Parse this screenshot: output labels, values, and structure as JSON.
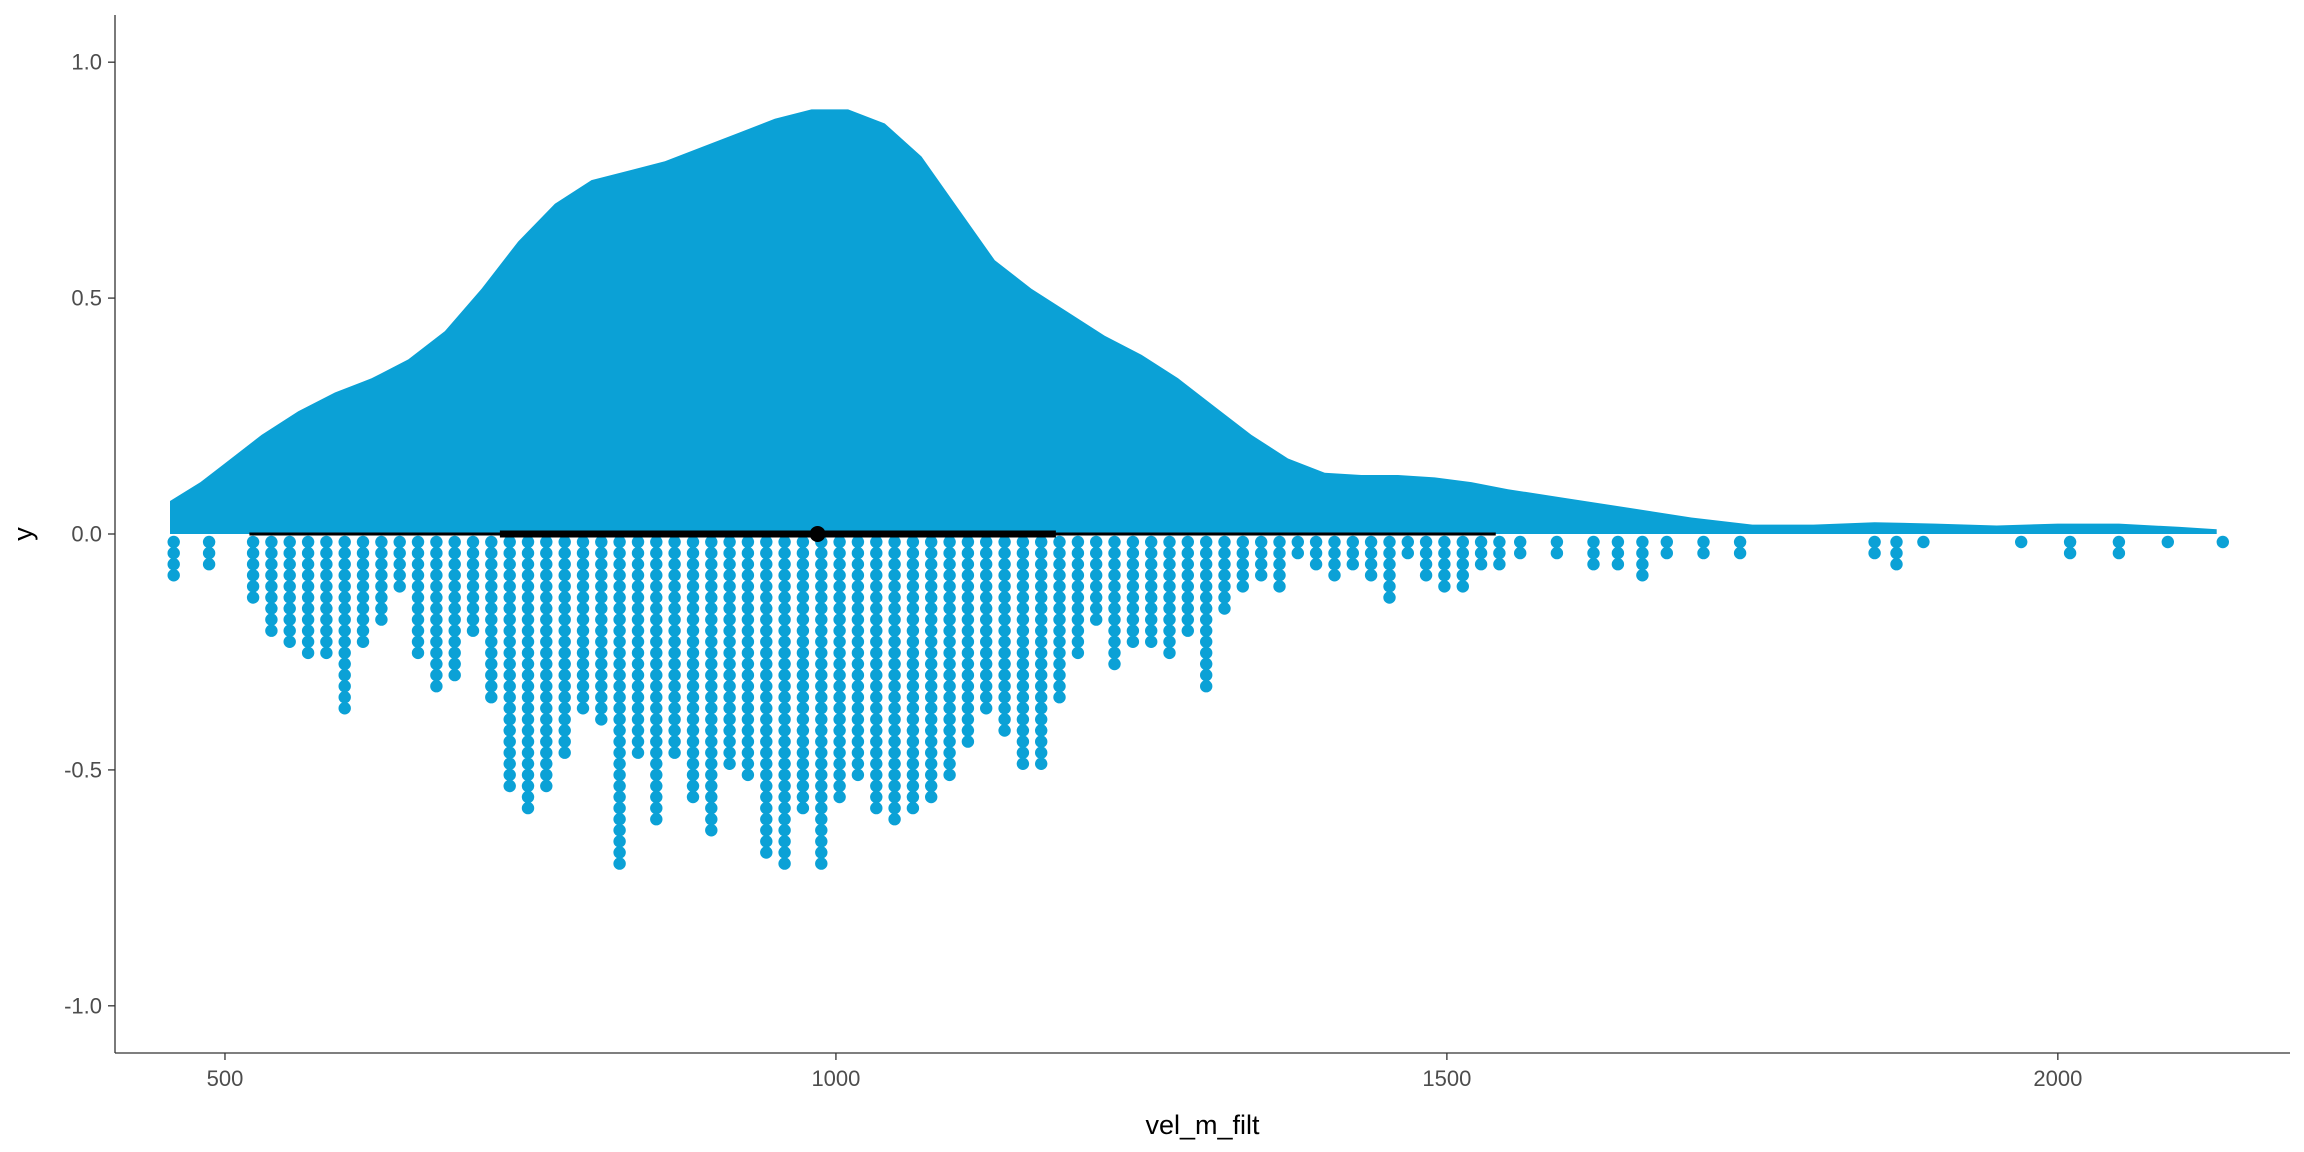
{
  "chart_data": {
    "type": "raincloud",
    "xlabel": "vel_m_filt",
    "ylabel": "y",
    "xlim": [
      410,
      2190
    ],
    "ylim": [
      -1.1,
      1.1
    ],
    "x_ticks": [
      500,
      1000,
      1500,
      2000
    ],
    "x_tick_labels": [
      "500",
      "1000",
      "1500",
      "2000"
    ],
    "y_ticks": [
      1.0,
      0.5,
      0.0,
      -0.5,
      -1.0
    ],
    "y_tick_labels": [
      "1.0",
      "0.5",
      "0.0",
      "-0.5",
      "-1.0"
    ],
    "grid": false,
    "legend": "none",
    "color": "#0ba1d6",
    "density": {
      "x": [
        455,
        480,
        500,
        530,
        560,
        590,
        620,
        650,
        680,
        710,
        740,
        770,
        800,
        830,
        860,
        890,
        920,
        950,
        980,
        1010,
        1040,
        1070,
        1100,
        1130,
        1160,
        1190,
        1220,
        1250,
        1280,
        1310,
        1340,
        1370,
        1400,
        1430,
        1460,
        1490,
        1520,
        1550,
        1600,
        1650,
        1700,
        1750,
        1800,
        1850,
        1900,
        1950,
        2000,
        2050,
        2100,
        2130
      ],
      "y": [
        0.07,
        0.11,
        0.15,
        0.21,
        0.26,
        0.3,
        0.33,
        0.37,
        0.43,
        0.52,
        0.62,
        0.7,
        0.75,
        0.77,
        0.79,
        0.82,
        0.85,
        0.88,
        0.9,
        0.9,
        0.87,
        0.8,
        0.69,
        0.58,
        0.52,
        0.47,
        0.42,
        0.38,
        0.33,
        0.27,
        0.21,
        0.16,
        0.13,
        0.125,
        0.125,
        0.12,
        0.11,
        0.095,
        0.075,
        0.055,
        0.035,
        0.02,
        0.02,
        0.025,
        0.022,
        0.018,
        0.022,
        0.022,
        0.015,
        0.01
      ]
    },
    "interval": {
      "thin": [
        520,
        1540
      ],
      "thick": [
        725,
        1180
      ],
      "point": 985
    },
    "dots": {
      "x": [
        458,
        487,
        523,
        538,
        553,
        568,
        583,
        598,
        613,
        628,
        643,
        658,
        673,
        688,
        703,
        718,
        733,
        748,
        763,
        778,
        793,
        808,
        823,
        838,
        853,
        868,
        883,
        898,
        913,
        928,
        943,
        958,
        973,
        988,
        1003,
        1018,
        1033,
        1048,
        1063,
        1078,
        1093,
        1108,
        1123,
        1138,
        1153,
        1168,
        1183,
        1198,
        1213,
        1228,
        1243,
        1258,
        1273,
        1288,
        1303,
        1318,
        1333,
        1348,
        1363,
        1378,
        1393,
        1408,
        1423,
        1438,
        1453,
        1468,
        1483,
        1498,
        1513,
        1528,
        1543,
        1560,
        1590,
        1620,
        1640,
        1660,
        1680,
        1710,
        1740,
        1850,
        1868,
        1890,
        1970,
        2010,
        2050,
        2090,
        2135
      ],
      "count": [
        4,
        3,
        6,
        9,
        10,
        11,
        11,
        16,
        10,
        8,
        5,
        11,
        14,
        13,
        9,
        15,
        23,
        25,
        23,
        20,
        16,
        17,
        30,
        20,
        26,
        20,
        24,
        27,
        21,
        22,
        29,
        30,
        25,
        30,
        24,
        22,
        25,
        26,
        25,
        24,
        22,
        19,
        16,
        18,
        21,
        21,
        15,
        11,
        8,
        12,
        10,
        10,
        11,
        9,
        14,
        7,
        5,
        4,
        5,
        2,
        3,
        4,
        3,
        4,
        6,
        2,
        4,
        5,
        5,
        3,
        3,
        2,
        2,
        3,
        3,
        4,
        2,
        2,
        2,
        2,
        3,
        1,
        1,
        2,
        2,
        1,
        1
      ]
    }
  }
}
